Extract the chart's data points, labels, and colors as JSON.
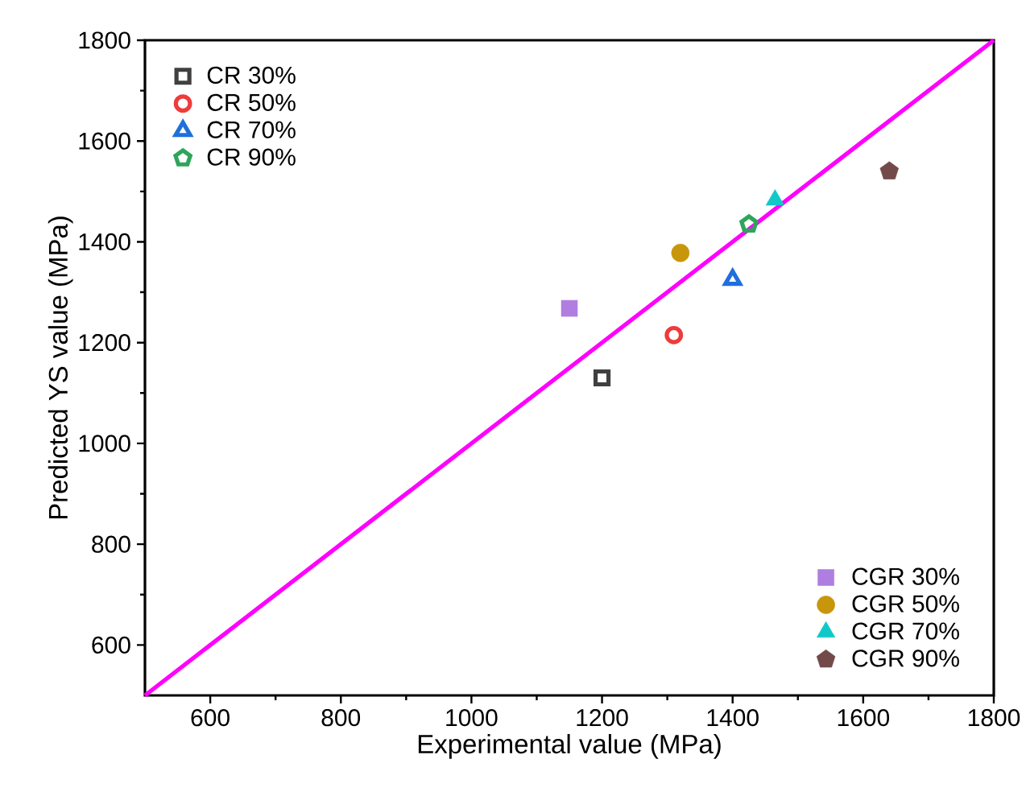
{
  "chart_data": {
    "type": "scatter",
    "xlabel": "Experimental value (MPa)",
    "ylabel": "Predicted YS value (MPa)",
    "xlim": [
      500,
      1800
    ],
    "ylim": [
      500,
      1800
    ],
    "xticks": [
      600,
      800,
      1000,
      1200,
      1400,
      1600,
      1800
    ],
    "yticks": [
      600,
      800,
      1000,
      1200,
      1400,
      1600,
      1800
    ],
    "grid": false,
    "legend": "top left",
    "series": [
      {
        "name": "CR 30%",
        "color": "#404040",
        "marker": "square",
        "x": [
          1200
        ],
        "values": [
          1130
        ]
      },
      {
        "name": "CR 50%",
        "color": "#ee3b3b",
        "marker": "circle",
        "x": [
          1310
        ],
        "values": [
          1215
        ]
      },
      {
        "name": "CR 70%",
        "color": "#1f6fdc",
        "marker": "triangle",
        "x": [
          1400
        ],
        "values": [
          1325
        ]
      },
      {
        "name": "CR 90%",
        "color": "#2ea55a",
        "x": [
          1425
        ],
        "values": [
          1435
        ]
      },
      {
        "name": "CGR 30%",
        "color": "#b07ee0",
        "marker": "square",
        "x": [
          1150
        ],
        "values": [
          1268
        ]
      },
      {
        "name": "CGR 50%",
        "color": "#c8960a",
        "marker": "circle",
        "x": [
          1320
        ],
        "values": [
          1378
        ]
      },
      {
        "name": "CGR 70%",
        "color": "#10c8c8",
        "marker": "triangle",
        "x": [
          1465
        ],
        "values": [
          1483
        ]
      },
      {
        "name": "CGR 90%",
        "color": "#734a4a",
        "x": [
          1640
        ],
        "values": [
          1540
        ]
      },
      {
        "type": "line",
        "color": "#ff00ff",
        "marker": "none",
        "x": [
          500,
          1800
        ],
        "values": [
          500,
          1800
        ]
      }
    ]
  }
}
